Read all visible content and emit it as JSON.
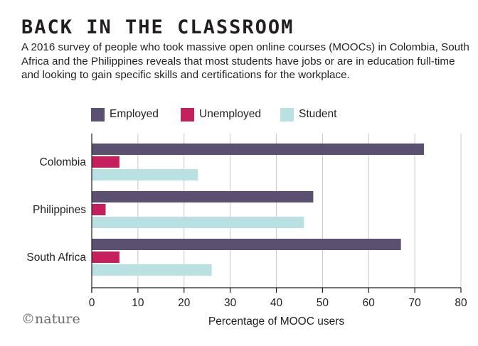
{
  "title": "BACK IN THE CLASSROOM",
  "subtitle": "A 2016 survey of people who took massive open online courses (MOOCs) in Colombia, South Africa and the Philippines reveals that most students have jobs or are in education full-time and looking to gain specific skills and certifications for the workplace.",
  "brand": "©nature",
  "colors": {
    "employed": "#5b5070",
    "unemployed": "#c51f5d",
    "student": "#b9e0e2",
    "grid": "#c8c8c8",
    "axis": "#231f20"
  },
  "legend": [
    {
      "label": "Employed",
      "color": "#5b5070"
    },
    {
      "label": "Unemployed",
      "color": "#c51f5d"
    },
    {
      "label": "Student",
      "color": "#b9e0e2"
    }
  ],
  "chart_data": {
    "type": "bar",
    "orientation": "horizontal",
    "title": "BACK IN THE CLASSROOM",
    "xlabel": "Percentage of MOOC users",
    "ylabel": "",
    "xlim": [
      0,
      80
    ],
    "xticks": [
      "0",
      "10",
      "20",
      "30",
      "40",
      "50",
      "60",
      "70",
      "80"
    ],
    "grid": true,
    "legend_position": "top",
    "categories": [
      "Colombia",
      "Philippines",
      "South Africa"
    ],
    "series": [
      {
        "name": "Employed",
        "color": "#5b5070",
        "values": [
          72,
          48,
          67
        ]
      },
      {
        "name": "Unemployed",
        "color": "#c51f5d",
        "values": [
          6,
          3,
          6
        ]
      },
      {
        "name": "Student",
        "color": "#b9e0e2",
        "values": [
          23,
          46,
          26
        ]
      }
    ]
  }
}
